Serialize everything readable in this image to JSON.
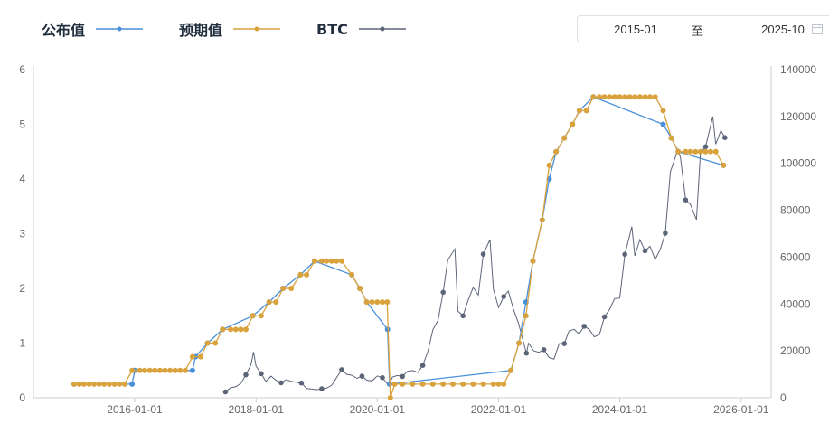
{
  "legend": {
    "published_label": "公布值",
    "expected_label": "预期值",
    "btc_label": "BTC"
  },
  "date_range": {
    "start": "2015-01",
    "separator": "至",
    "end": "2025-10",
    "icon": "calendar-icon"
  },
  "colors": {
    "published": "#4a90d9",
    "expected": "#d9a23c",
    "btc": "#5c6478",
    "axis": "#999999",
    "grid": "#e6e6e6"
  },
  "chart_data": {
    "type": "line",
    "grid": false,
    "legend_position": "top-left",
    "x_axis": {
      "type": "time",
      "min": "2014-05-01",
      "max": "2026-07-01",
      "ticks": [
        "2016-01-01",
        "2018-01-01",
        "2020-01-01",
        "2022-01-01",
        "2024-01-01",
        "2026-01-01"
      ]
    },
    "y_left": {
      "min": 0,
      "max": 6,
      "ticks": [
        0,
        1,
        2,
        3,
        4,
        5,
        6
      ]
    },
    "y_right": {
      "min": 0,
      "max": 140000,
      "ticks": [
        0,
        20000,
        40000,
        60000,
        80000,
        100000,
        120000,
        140000
      ]
    },
    "series": [
      {
        "name": "公布值",
        "axis": "left",
        "points": [
          [
            "2015-01-01",
            0.25
          ],
          [
            "2015-12-16",
            0.25
          ],
          [
            "2016-01-01",
            0.5
          ],
          [
            "2016-12-14",
            0.5
          ],
          [
            "2017-01-01",
            0.75
          ],
          [
            "2017-03-15",
            1.0
          ],
          [
            "2017-06-14",
            1.25
          ],
          [
            "2017-12-13",
            1.5
          ],
          [
            "2018-03-21",
            1.75
          ],
          [
            "2018-06-13",
            2.0
          ],
          [
            "2018-09-26",
            2.25
          ],
          [
            "2018-12-19",
            2.5
          ],
          [
            "2019-07-31",
            2.25
          ],
          [
            "2019-09-18",
            2.0
          ],
          [
            "2019-10-30",
            1.75
          ],
          [
            "2020-03-03",
            1.25
          ],
          [
            "2020-03-15",
            0.25
          ],
          [
            "2022-03-16",
            0.5
          ],
          [
            "2022-05-04",
            1.0
          ],
          [
            "2022-06-15",
            1.75
          ],
          [
            "2022-07-27",
            2.5
          ],
          [
            "2022-09-21",
            3.25
          ],
          [
            "2022-11-02",
            4.0
          ],
          [
            "2022-12-14",
            4.5
          ],
          [
            "2023-02-01",
            4.75
          ],
          [
            "2023-03-22",
            5.0
          ],
          [
            "2023-05-03",
            5.25
          ],
          [
            "2023-07-26",
            5.5
          ],
          [
            "2024-09-18",
            5.0
          ],
          [
            "2024-11-07",
            4.75
          ],
          [
            "2024-12-18",
            4.5
          ],
          [
            "2025-09-17",
            4.25
          ]
        ]
      },
      {
        "name": "预期值",
        "axis": "left",
        "points": [
          [
            "2015-01-01",
            0.25
          ],
          [
            "2015-02-01",
            0.25
          ],
          [
            "2015-03-01",
            0.25
          ],
          [
            "2015-04-01",
            0.25
          ],
          [
            "2015-05-01",
            0.25
          ],
          [
            "2015-06-01",
            0.25
          ],
          [
            "2015-07-01",
            0.25
          ],
          [
            "2015-08-01",
            0.25
          ],
          [
            "2015-09-01",
            0.25
          ],
          [
            "2015-10-01",
            0.25
          ],
          [
            "2015-11-01",
            0.25
          ],
          [
            "2015-12-16",
            0.5
          ],
          [
            "2016-02-01",
            0.5
          ],
          [
            "2016-03-01",
            0.5
          ],
          [
            "2016-04-01",
            0.5
          ],
          [
            "2016-05-01",
            0.5
          ],
          [
            "2016-06-01",
            0.5
          ],
          [
            "2016-07-01",
            0.5
          ],
          [
            "2016-08-01",
            0.5
          ],
          [
            "2016-09-01",
            0.5
          ],
          [
            "2016-10-01",
            0.5
          ],
          [
            "2016-11-01",
            0.5
          ],
          [
            "2016-12-14",
            0.75
          ],
          [
            "2017-02-01",
            0.75
          ],
          [
            "2017-03-15",
            1.0
          ],
          [
            "2017-05-01",
            1.0
          ],
          [
            "2017-06-14",
            1.25
          ],
          [
            "2017-08-01",
            1.25
          ],
          [
            "2017-09-01",
            1.25
          ],
          [
            "2017-10-01",
            1.25
          ],
          [
            "2017-11-01",
            1.25
          ],
          [
            "2017-12-13",
            1.5
          ],
          [
            "2018-02-01",
            1.5
          ],
          [
            "2018-03-21",
            1.75
          ],
          [
            "2018-05-01",
            1.75
          ],
          [
            "2018-06-13",
            2.0
          ],
          [
            "2018-08-01",
            2.0
          ],
          [
            "2018-09-26",
            2.25
          ],
          [
            "2018-11-01",
            2.25
          ],
          [
            "2018-12-19",
            2.5
          ],
          [
            "2019-02-01",
            2.5
          ],
          [
            "2019-03-01",
            2.5
          ],
          [
            "2019-04-01",
            2.5
          ],
          [
            "2019-05-01",
            2.5
          ],
          [
            "2019-06-01",
            2.5
          ],
          [
            "2019-07-31",
            2.25
          ],
          [
            "2019-09-18",
            2.0
          ],
          [
            "2019-10-30",
            1.75
          ],
          [
            "2019-12-01",
            1.75
          ],
          [
            "2020-01-01",
            1.75
          ],
          [
            "2020-02-01",
            1.75
          ],
          [
            "2020-03-01",
            1.75
          ],
          [
            "2020-03-20",
            0.0
          ],
          [
            "2020-04-15",
            0.25
          ],
          [
            "2020-06-01",
            0.25
          ],
          [
            "2020-08-01",
            0.25
          ],
          [
            "2020-10-01",
            0.25
          ],
          [
            "2020-12-01",
            0.25
          ],
          [
            "2021-02-01",
            0.25
          ],
          [
            "2021-04-01",
            0.25
          ],
          [
            "2021-06-01",
            0.25
          ],
          [
            "2021-08-01",
            0.25
          ],
          [
            "2021-10-01",
            0.25
          ],
          [
            "2021-12-01",
            0.25
          ],
          [
            "2022-01-01",
            0.25
          ],
          [
            "2022-02-01",
            0.25
          ],
          [
            "2022-03-16",
            0.5
          ],
          [
            "2022-05-04",
            1.0
          ],
          [
            "2022-06-15",
            1.5
          ],
          [
            "2022-07-27",
            2.5
          ],
          [
            "2022-09-21",
            3.25
          ],
          [
            "2022-11-02",
            4.25
          ],
          [
            "2022-12-14",
            4.5
          ],
          [
            "2023-02-01",
            4.75
          ],
          [
            "2023-03-22",
            5.0
          ],
          [
            "2023-05-03",
            5.25
          ],
          [
            "2023-06-14",
            5.25
          ],
          [
            "2023-07-26",
            5.5
          ],
          [
            "2023-09-01",
            5.5
          ],
          [
            "2023-10-01",
            5.5
          ],
          [
            "2023-11-01",
            5.5
          ],
          [
            "2023-12-01",
            5.5
          ],
          [
            "2024-01-01",
            5.5
          ],
          [
            "2024-02-01",
            5.5
          ],
          [
            "2024-03-01",
            5.5
          ],
          [
            "2024-04-01",
            5.5
          ],
          [
            "2024-05-01",
            5.5
          ],
          [
            "2024-06-01",
            5.5
          ],
          [
            "2024-07-01",
            5.5
          ],
          [
            "2024-08-01",
            5.5
          ],
          [
            "2024-09-18",
            5.25
          ],
          [
            "2024-11-07",
            4.75
          ],
          [
            "2024-12-18",
            4.5
          ],
          [
            "2025-02-01",
            4.5
          ],
          [
            "2025-03-01",
            4.5
          ],
          [
            "2025-04-01",
            4.5
          ],
          [
            "2025-05-01",
            4.5
          ],
          [
            "2025-06-01",
            4.5
          ],
          [
            "2025-07-01",
            4.5
          ],
          [
            "2025-08-01",
            4.5
          ],
          [
            "2025-09-17",
            4.25
          ]
        ]
      },
      {
        "name": "BTC",
        "axis": "right",
        "points": [
          [
            "2017-07-01",
            2500
          ],
          [
            "2017-08-01",
            4300
          ],
          [
            "2017-09-01",
            4700
          ],
          [
            "2017-10-01",
            6100
          ],
          [
            "2017-11-01",
            9800
          ],
          [
            "2017-12-01",
            14000
          ],
          [
            "2017-12-17",
            19500
          ],
          [
            "2018-01-01",
            13500
          ],
          [
            "2018-02-01",
            10300
          ],
          [
            "2018-03-01",
            7000
          ],
          [
            "2018-04-01",
            9200
          ],
          [
            "2018-05-01",
            7500
          ],
          [
            "2018-06-01",
            6400
          ],
          [
            "2018-07-01",
            7700
          ],
          [
            "2018-08-01",
            7000
          ],
          [
            "2018-09-01",
            6600
          ],
          [
            "2018-10-01",
            6300
          ],
          [
            "2018-11-01",
            4000
          ],
          [
            "2018-12-01",
            3700
          ],
          [
            "2019-01-01",
            3450
          ],
          [
            "2019-02-01",
            3800
          ],
          [
            "2019-03-01",
            4100
          ],
          [
            "2019-04-01",
            5300
          ],
          [
            "2019-05-01",
            8600
          ],
          [
            "2019-06-01",
            12000
          ],
          [
            "2019-07-01",
            10000
          ],
          [
            "2019-08-01",
            9600
          ],
          [
            "2019-09-01",
            8300
          ],
          [
            "2019-10-01",
            9200
          ],
          [
            "2019-11-01",
            7500
          ],
          [
            "2019-12-01",
            7200
          ],
          [
            "2020-01-01",
            9300
          ],
          [
            "2020-02-01",
            8600
          ],
          [
            "2020-03-12",
            5000
          ],
          [
            "2020-04-01",
            8800
          ],
          [
            "2020-05-01",
            9500
          ],
          [
            "2020-06-01",
            9100
          ],
          [
            "2020-07-01",
            11300
          ],
          [
            "2020-08-01",
            11600
          ],
          [
            "2020-09-01",
            10800
          ],
          [
            "2020-10-01",
            13800
          ],
          [
            "2020-11-01",
            19700
          ],
          [
            "2020-12-01",
            29000
          ],
          [
            "2021-01-01",
            33000
          ],
          [
            "2021-02-01",
            45000
          ],
          [
            "2021-03-01",
            58800
          ],
          [
            "2021-04-13",
            63500
          ],
          [
            "2021-05-01",
            37000
          ],
          [
            "2021-06-01",
            35000
          ],
          [
            "2021-07-01",
            41500
          ],
          [
            "2021-08-01",
            47000
          ],
          [
            "2021-09-01",
            43800
          ],
          [
            "2021-10-01",
            61300
          ],
          [
            "2021-11-10",
            67500
          ],
          [
            "2021-12-01",
            46300
          ],
          [
            "2022-01-01",
            38500
          ],
          [
            "2022-02-01",
            43200
          ],
          [
            "2022-03-01",
            45500
          ],
          [
            "2022-04-01",
            37700
          ],
          [
            "2022-05-01",
            31800
          ],
          [
            "2022-06-18",
            19000
          ],
          [
            "2022-07-01",
            23300
          ],
          [
            "2022-08-01",
            20000
          ],
          [
            "2022-09-01",
            19400
          ],
          [
            "2022-10-01",
            20500
          ],
          [
            "2022-11-01",
            17200
          ],
          [
            "2022-12-01",
            16500
          ],
          [
            "2023-01-01",
            23100
          ],
          [
            "2023-02-01",
            23100
          ],
          [
            "2023-03-01",
            28500
          ],
          [
            "2023-04-01",
            29200
          ],
          [
            "2023-05-01",
            27200
          ],
          [
            "2023-06-01",
            30500
          ],
          [
            "2023-07-01",
            29200
          ],
          [
            "2023-08-01",
            26000
          ],
          [
            "2023-09-01",
            27000
          ],
          [
            "2023-10-01",
            34500
          ],
          [
            "2023-11-01",
            37700
          ],
          [
            "2023-12-01",
            42300
          ],
          [
            "2024-01-01",
            42500
          ],
          [
            "2024-02-01",
            61200
          ],
          [
            "2024-03-14",
            73000
          ],
          [
            "2024-04-01",
            60600
          ],
          [
            "2024-05-01",
            67500
          ],
          [
            "2024-06-01",
            62700
          ],
          [
            "2024-07-01",
            64600
          ],
          [
            "2024-08-01",
            59000
          ],
          [
            "2024-09-01",
            63300
          ],
          [
            "2024-10-01",
            70200
          ],
          [
            "2024-11-01",
            96400
          ],
          [
            "2024-12-17",
            106000
          ],
          [
            "2025-01-01",
            102400
          ],
          [
            "2025-02-01",
            84400
          ],
          [
            "2025-03-01",
            82500
          ],
          [
            "2025-04-07",
            76000
          ],
          [
            "2025-05-01",
            104600
          ],
          [
            "2025-06-01",
            107100
          ],
          [
            "2025-07-14",
            120000
          ],
          [
            "2025-08-01",
            108200
          ],
          [
            "2025-09-01",
            114000
          ],
          [
            "2025-09-25",
            111000
          ]
        ]
      }
    ]
  }
}
